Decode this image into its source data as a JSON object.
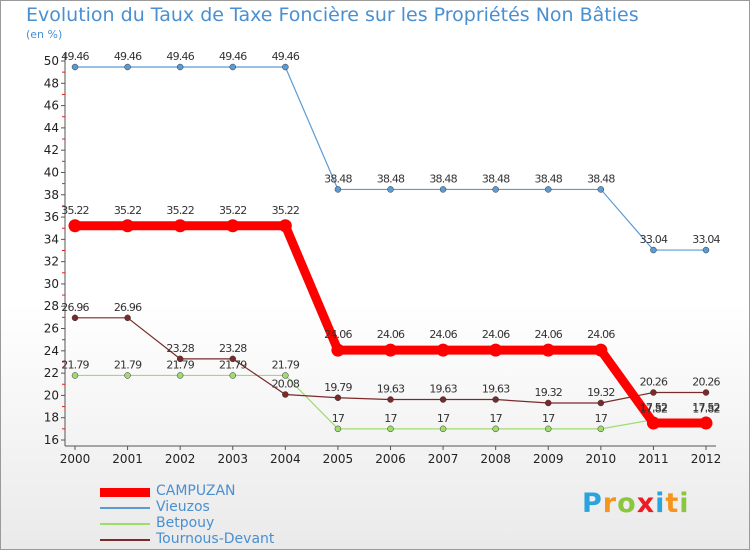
{
  "title": "Evolution du Taux de Taxe Foncière sur les Propriétés Non Bâties",
  "subtitle": "(en %)",
  "logo": {
    "letters": [
      "P",
      "r",
      "o",
      "x",
      "i",
      "t",
      "i"
    ],
    "colors": [
      "#2aa4dd",
      "#f7941d",
      "#8cc63f",
      "#ed1c24",
      "#2aa4dd",
      "#f7941d",
      "#8cc63f"
    ]
  },
  "chart_data": {
    "type": "line",
    "title": "Evolution du Taux de Taxe Foncière sur les Propriétés Non Bâties",
    "ylabel": "(en %)",
    "xlabel": "",
    "ylim": [
      16,
      50
    ],
    "y_ticks": [
      16,
      18,
      20,
      22,
      24,
      26,
      28,
      30,
      32,
      34,
      36,
      38,
      40,
      42,
      44,
      46,
      48,
      50
    ],
    "categories": [
      "2000",
      "2001",
      "2002",
      "2003",
      "2004",
      "2005",
      "2006",
      "2007",
      "2008",
      "2009",
      "2010",
      "2011",
      "2012"
    ],
    "series": [
      {
        "name": "CAMPUZAN",
        "color": "#ff0000",
        "bold": true,
        "values": [
          35.22,
          35.22,
          35.22,
          35.22,
          35.22,
          24.06,
          24.06,
          24.06,
          24.06,
          24.06,
          24.06,
          17.52,
          17.52
        ],
        "labels": [
          "35.22",
          "35.22",
          "35.22",
          "35.22",
          "35.22",
          "24.06",
          "24.06",
          "24.06",
          "24.06",
          "24.06",
          "24.06",
          "17.52",
          "17.52"
        ]
      },
      {
        "name": "Vieuzos",
        "color": "#5b9bd5",
        "bold": false,
        "values": [
          49.46,
          49.46,
          49.46,
          49.46,
          49.46,
          38.48,
          38.48,
          38.48,
          38.48,
          38.48,
          38.48,
          33.04,
          33.04
        ],
        "labels": [
          "49.46",
          "49.46",
          "49.46",
          "49.46",
          "49.46",
          "38.48",
          "38.48",
          "38.48",
          "38.48",
          "38.48",
          "38.48",
          "33.04",
          "33.04"
        ]
      },
      {
        "name": "Betpouy",
        "color": "#9fdc6e",
        "bold": false,
        "values": [
          21.79,
          21.79,
          21.79,
          21.79,
          21.79,
          17,
          17,
          17,
          17,
          17,
          17,
          17.82,
          17.82
        ],
        "labels": [
          "21.79",
          "21.79",
          "21.79",
          "21.79",
          "21.79",
          "17",
          "17",
          "17",
          "17",
          "17",
          "17",
          "17.82",
          "17.82"
        ]
      },
      {
        "name": "Tournous-Devant",
        "color": "#7a2a2a",
        "bold": false,
        "values": [
          26.96,
          26.96,
          23.28,
          23.28,
          20.08,
          19.79,
          19.63,
          19.63,
          19.63,
          19.32,
          19.32,
          20.26,
          20.26
        ],
        "labels": [
          "26.96",
          "26.96",
          "23.28",
          "23.28",
          "20.08",
          "19.79",
          "19.63",
          "19.63",
          "19.63",
          "19.32",
          "19.32",
          "20.26",
          "20.26"
        ]
      }
    ],
    "legend": [
      "CAMPUZAN",
      "Vieuzos",
      "Betpouy",
      "Tournous-Devant"
    ]
  }
}
